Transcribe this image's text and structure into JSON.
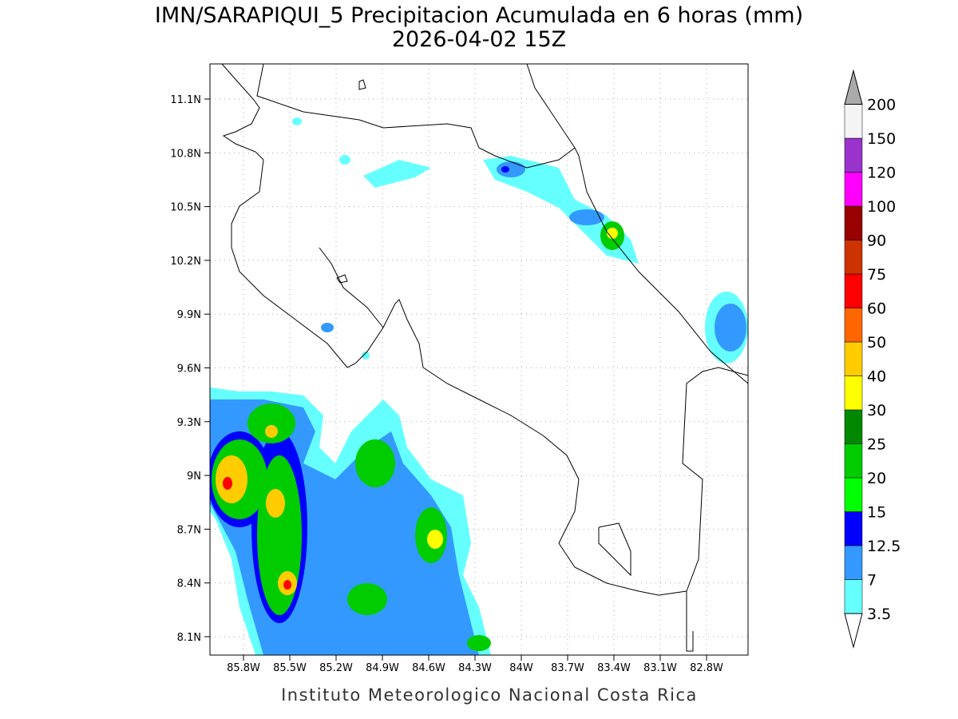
{
  "title": "IMN/SARAPIQUI_5 Precipitacion Acumulada en 6 horas (mm)",
  "subtitle": "2026-04-02 15Z",
  "lat_labels": [
    "11.1N",
    "10.8N",
    "10.5N",
    "10.2N",
    "9.9N",
    "9.6N",
    "9.3N",
    "9N",
    "8.7N",
    "8.4N",
    "8.1N"
  ],
  "lon_labels": [
    "85.8W",
    "85.5W",
    "85.2W",
    "84.9W",
    "84.6W",
    "84.3W",
    "84W",
    "83.7W",
    "83.4W",
    "83.1W",
    "82.8W"
  ],
  "colorbar": {
    "levels": [
      3.5,
      7,
      12.5,
      15,
      20,
      25,
      30,
      40,
      50,
      60,
      75,
      90,
      100,
      120,
      150,
      200
    ],
    "colors": [
      "#66ffff",
      "#3399ff",
      "#0000ff",
      "#00ff00",
      "#00cc00",
      "#008800",
      "#ffff00",
      "#ffcc00",
      "#ff6600",
      "#ff0000",
      "#cc3300",
      "#990000",
      "#ff00ff",
      "#9933cc",
      "#f4f4f4"
    ],
    "over_color": "#aaaaaa"
  },
  "footer": "Instituto Meteorologico Nacional Costa Rica"
}
